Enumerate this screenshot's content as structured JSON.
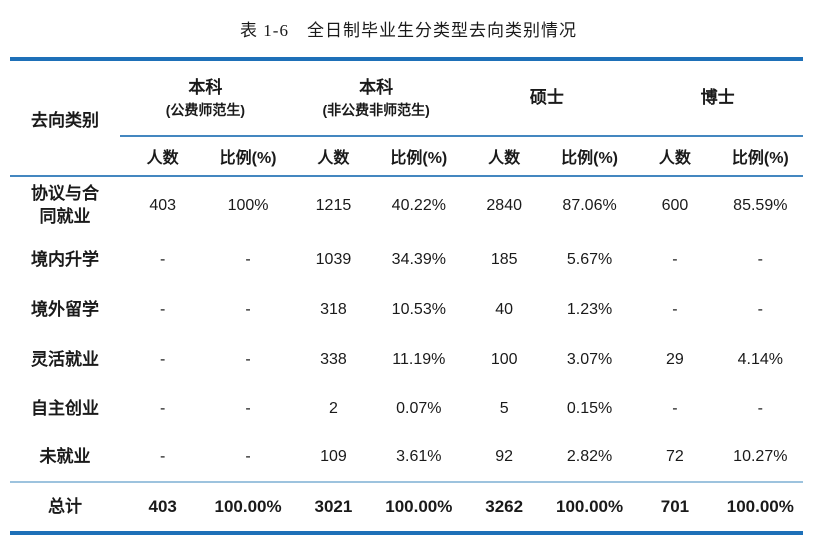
{
  "title": "表 1-6　全日制毕业生分类型去向类别情况",
  "colors": {
    "rule_heavy": "#1E70B8",
    "rule_medium": "#4487C0",
    "rule_light": "#9DC3DE",
    "text": "#1a1a1a"
  },
  "table": {
    "corner_header": "去向类别",
    "groups": [
      {
        "title": "本科",
        "subtitle": "(公费师范生)"
      },
      {
        "title": "本科",
        "subtitle": "(非公费非师范生)"
      },
      {
        "title": "硕士",
        "subtitle": ""
      },
      {
        "title": "博士",
        "subtitle": ""
      }
    ],
    "sub_count": "人数",
    "sub_ratio": "比例(%)",
    "rows": [
      {
        "label": "协议与合同就业",
        "values": [
          "403",
          "100%",
          "1215",
          "40.22%",
          "2840",
          "87.06%",
          "600",
          "85.59%"
        ]
      },
      {
        "label": "境内升学",
        "values": [
          "-",
          "-",
          "1039",
          "34.39%",
          "185",
          "5.67%",
          "-",
          "-"
        ]
      },
      {
        "label": "境外留学",
        "values": [
          "-",
          "-",
          "318",
          "10.53%",
          "40",
          "1.23%",
          "-",
          "-"
        ]
      },
      {
        "label": "灵活就业",
        "values": [
          "-",
          "-",
          "338",
          "11.19%",
          "100",
          "3.07%",
          "29",
          "4.14%"
        ]
      },
      {
        "label": "自主创业",
        "values": [
          "-",
          "-",
          "2",
          "0.07%",
          "5",
          "0.15%",
          "-",
          "-"
        ]
      },
      {
        "label": "未就业",
        "values": [
          "-",
          "-",
          "109",
          "3.61%",
          "92",
          "2.82%",
          "72",
          "10.27%"
        ]
      }
    ],
    "total": {
      "label": "总计",
      "values": [
        "403",
        "100.00%",
        "3021",
        "100.00%",
        "3262",
        "100.00%",
        "701",
        "100.00%"
      ]
    }
  }
}
